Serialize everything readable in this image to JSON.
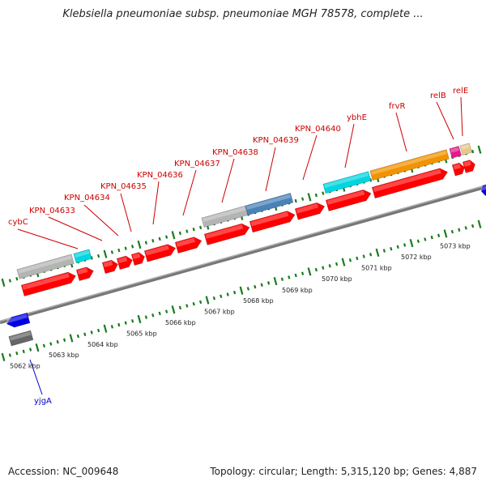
{
  "title": "Klebsiella pneumoniae subsp. pneumoniae MGH 78578, complete ...",
  "accession_label": "Accession: NC_009648",
  "topology_label": "Topology: circular; Length: 5,315,120 bp; Genes: 4,887",
  "kbp_labels": [
    "5062 kbp",
    "5063 kbp",
    "5064 kbp",
    "5065 kbp",
    "5066 kbp",
    "5067 kbp",
    "5068 kbp",
    "5069 kbp",
    "5070 kbp",
    "5071 kbp",
    "5072 kbp",
    "5073 kbp"
  ],
  "gene_labels": [
    "cybC",
    "KPN_04633",
    "KPN_04634",
    "KPN_04635",
    "KPN_04636",
    "KPN_04637",
    "KPN_04638",
    "KPN_04639",
    "KPN_04640",
    "ybhE",
    "frvR",
    "relB",
    "relE",
    "yjgA"
  ],
  "colors": {
    "cds": "#ff0000",
    "gene_grey": "#b4b4b4",
    "gene_cyan": "#00d5e0",
    "gene_steel": "#4a82b8",
    "gene_orange": "#f29300",
    "gene_magenta": "#e6198c",
    "gene_tan": "#e6c88c",
    "gene_blue": "#0000e6",
    "gene_darkgrey": "#666666",
    "backbone": "#888888",
    "tick": "#1a7a1a",
    "label_red": "#cc0000",
    "label_blue": "#0000cc"
  }
}
